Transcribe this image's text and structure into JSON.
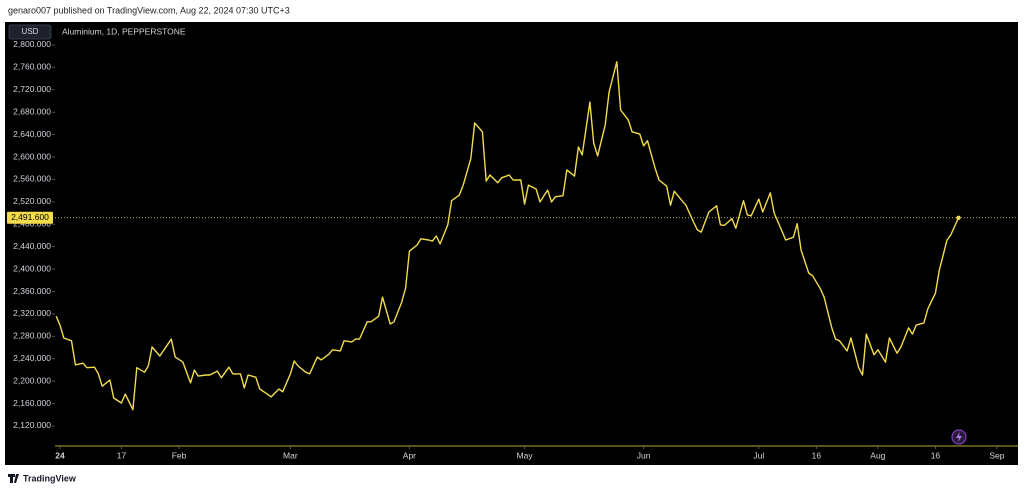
{
  "header": "genaro007 published on TradingView.com, Aug 22, 2024 07:30 UTC+3",
  "footer": "TradingView",
  "chart_data": {
    "type": "line",
    "currency": "USD",
    "symbol_label": "Aluminium, 1D, PEPPERSTONE",
    "color": "#f2dc4b",
    "x": [
      -1,
      0,
      1,
      3,
      4,
      6,
      7,
      9,
      10,
      11,
      13,
      14,
      16,
      17,
      19,
      20,
      22,
      23,
      24,
      26,
      28,
      29,
      30,
      32,
      34,
      35,
      36,
      38,
      39,
      41,
      42,
      44,
      45,
      47,
      48,
      49,
      51,
      52,
      54,
      55,
      57,
      58,
      60,
      61,
      62,
      64,
      65,
      67,
      68,
      70,
      71,
      73,
      74,
      76,
      77,
      78,
      80,
      81,
      83,
      84,
      86,
      87,
      89,
      90,
      91,
      93,
      94,
      96,
      97,
      98,
      99,
      101,
      102,
      104,
      105,
      107,
      108,
      110,
      111,
      112,
      114,
      115,
      117,
      118,
      120,
      121,
      122,
      124,
      125,
      127,
      128,
      129,
      131,
      132,
      134,
      135,
      136,
      138,
      139,
      140,
      142,
      143,
      145,
      146,
      148,
      149,
      151,
      152,
      153,
      155,
      156,
      158,
      159,
      160,
      162,
      163,
      165,
      166,
      167,
      169,
      171,
      172,
      173,
      175,
      176,
      178,
      179,
      180,
      182,
      183,
      185,
      186,
      188,
      189,
      191,
      192,
      193,
      195,
      196,
      198,
      199,
      201,
      202,
      203,
      205,
      206,
      208,
      209,
      210,
      212,
      213,
      215,
      216,
      218,
      219,
      221,
      222,
      223,
      225,
      226,
      228,
      229,
      231,
      232,
      234
    ],
    "values": [
      2316,
      2300,
      2277,
      2272,
      2229,
      2232,
      2224,
      2225,
      2213,
      2191,
      2202,
      2170,
      2161,
      2177,
      2149,
      2224,
      2216,
      2227,
      2261,
      2245,
      2265,
      2275,
      2243,
      2234,
      2197,
      2220,
      2209,
      2211,
      2211,
      2218,
      2206,
      2225,
      2213,
      2213,
      2188,
      2211,
      2207,
      2186,
      2177,
      2172,
      2186,
      2181,
      2213,
      2236,
      2227,
      2216,
      2213,
      2243,
      2238,
      2248,
      2256,
      2254,
      2272,
      2270,
      2275,
      2275,
      2306,
      2306,
      2316,
      2350,
      2302,
      2306,
      2341,
      2366,
      2432,
      2443,
      2454,
      2452,
      2450,
      2459,
      2445,
      2479,
      2522,
      2532,
      2550,
      2597,
      2661,
      2645,
      2557,
      2568,
      2554,
      2563,
      2568,
      2559,
      2559,
      2516,
      2550,
      2543,
      2520,
      2541,
      2520,
      2529,
      2531,
      2577,
      2566,
      2618,
      2604,
      2698,
      2625,
      2602,
      2657,
      2716,
      2770,
      2684,
      2666,
      2645,
      2641,
      2620,
      2629,
      2580,
      2559,
      2548,
      2514,
      2539,
      2522,
      2514,
      2484,
      2470,
      2466,
      2502,
      2513,
      2479,
      2478,
      2490,
      2473,
      2522,
      2497,
      2495,
      2525,
      2502,
      2536,
      2500,
      2468,
      2452,
      2457,
      2481,
      2434,
      2393,
      2388,
      2365,
      2350,
      2295,
      2275,
      2272,
      2254,
      2277,
      2224,
      2211,
      2284,
      2247,
      2256,
      2234,
      2277,
      2250,
      2261,
      2295,
      2284,
      2300,
      2304,
      2329,
      2357,
      2398,
      2452,
      2461,
      2491.6
    ],
    "last_price": {
      "value": 2491.6,
      "label": "2,491.600"
    },
    "xlim": [
      -1.3,
      249.5
    ],
    "ylim": [
      2084.3,
      2841
    ],
    "xticks": [
      {
        "value": 0,
        "label": "24"
      },
      {
        "value": 16,
        "label": "17"
      },
      {
        "value": 31,
        "label": "Feb"
      },
      {
        "value": 60,
        "label": "Mar"
      },
      {
        "value": 91,
        "label": "Apr"
      },
      {
        "value": 121,
        "label": "May"
      },
      {
        "value": 152,
        "label": "Jun"
      },
      {
        "value": 182,
        "label": "Jul"
      },
      {
        "value": 197,
        "label": "16"
      },
      {
        "value": 213,
        "label": "Aug"
      },
      {
        "value": 228,
        "label": "16"
      },
      {
        "value": 244,
        "label": "Sep"
      }
    ],
    "yticks": [
      {
        "value": 2120,
        "label": "2,120.000"
      },
      {
        "value": 2160,
        "label": "2,160.000"
      },
      {
        "value": 2200,
        "label": "2,200.000"
      },
      {
        "value": 2240,
        "label": "2,240.000"
      },
      {
        "value": 2280,
        "label": "2,280.000"
      },
      {
        "value": 2320,
        "label": "2,320.000"
      },
      {
        "value": 2360,
        "label": "2,360.000"
      },
      {
        "value": 2400,
        "label": "2,400.000"
      },
      {
        "value": 2440,
        "label": "2,440.000"
      },
      {
        "value": 2480,
        "label": "2,480.000"
      },
      {
        "value": 2520,
        "label": "2,520.000"
      },
      {
        "value": 2560,
        "label": "2,560.000"
      },
      {
        "value": 2600,
        "label": "2,600.000"
      },
      {
        "value": 2640,
        "label": "2,640.000"
      },
      {
        "value": 2680,
        "label": "2,680.000"
      },
      {
        "value": 2720,
        "label": "2,720.000"
      },
      {
        "value": 2760,
        "label": "2,760.000"
      },
      {
        "value": 2800,
        "label": "2,800.000"
      }
    ],
    "grid": false
  }
}
